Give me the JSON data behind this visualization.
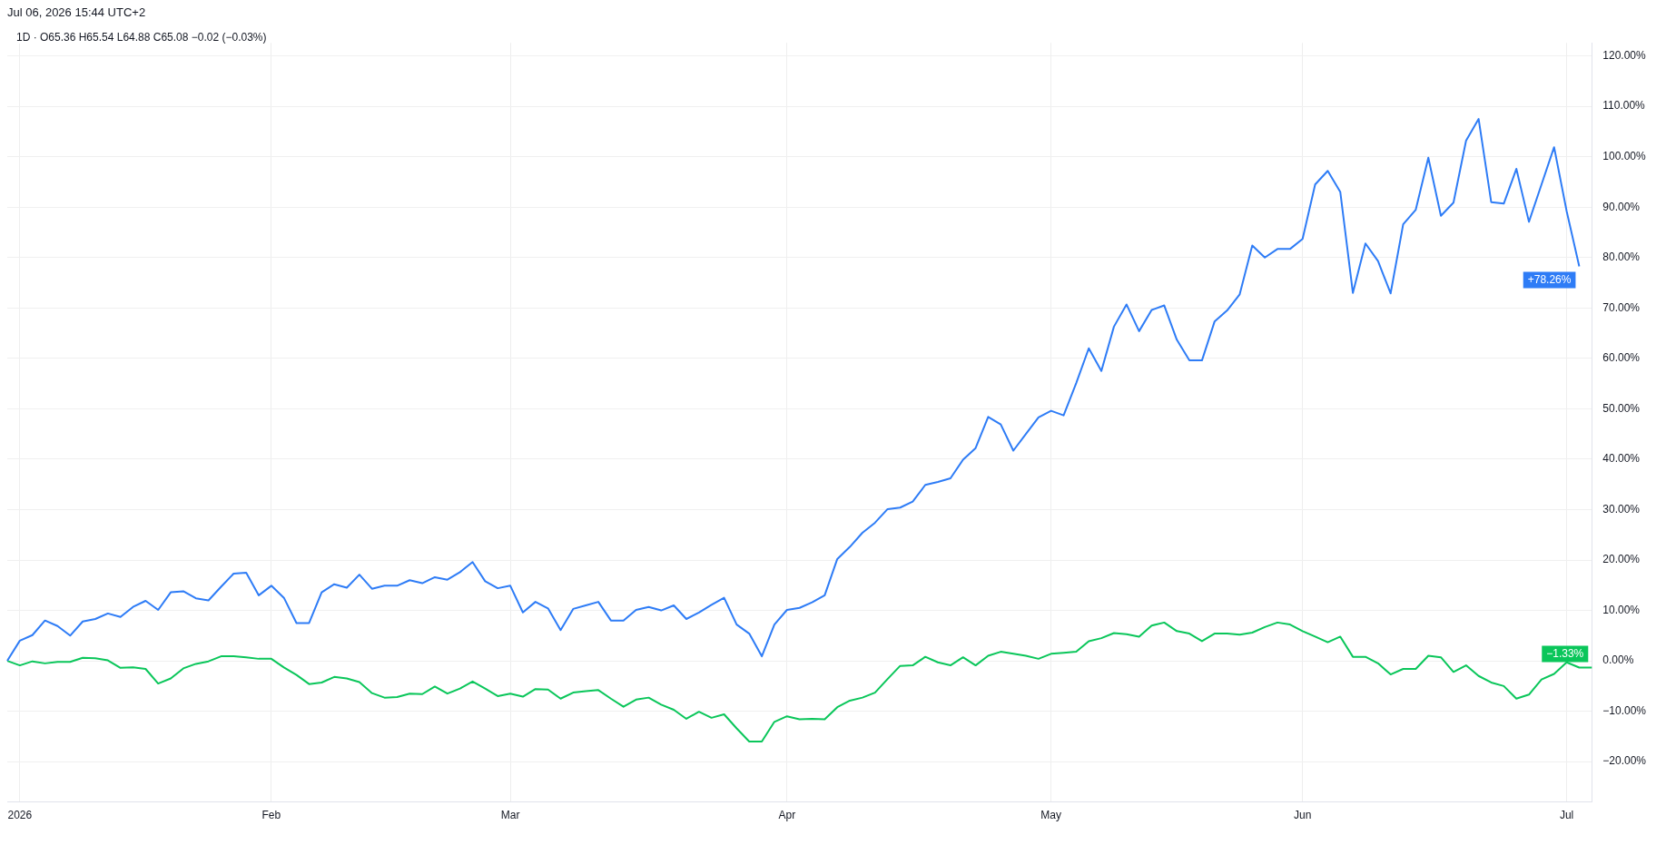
{
  "chart_data": {
    "type": "line",
    "title": "1D · O65.36 H65.54 L64.88 C65.08 −0.02 (−0.03%)",
    "annotations": [
      "Jul 06, 2026 15:44 UTC+2"
    ],
    "categories": [
      null,
      "2026",
      null,
      null,
      null,
      null,
      null,
      null,
      null,
      null,
      null,
      null,
      null,
      null,
      null,
      null,
      null,
      null,
      null,
      null,
      null,
      "Feb",
      null,
      null,
      null,
      null,
      null,
      null,
      null,
      null,
      null,
      null,
      null,
      null,
      null,
      null,
      null,
      null,
      null,
      null,
      "Mar",
      null,
      null,
      null,
      null,
      null,
      null,
      null,
      null,
      null,
      null,
      null,
      null,
      null,
      null,
      null,
      null,
      null,
      null,
      null,
      null,
      null,
      "Apr",
      null,
      null,
      null,
      null,
      null,
      null,
      null,
      null,
      null,
      null,
      null,
      null,
      null,
      null,
      null,
      null,
      null,
      null,
      null,
      null,
      "May",
      null,
      null,
      null,
      null,
      null,
      null,
      null,
      null,
      null,
      null,
      null,
      null,
      null,
      null,
      null,
      null,
      null,
      null,
      null,
      "Jun",
      null,
      null,
      null,
      null,
      null,
      null,
      null,
      null,
      null,
      null,
      null,
      null,
      null,
      null,
      null,
      null,
      null,
      null,
      null,
      null,
      "Jul",
      null,
      null
    ],
    "series": [
      {
        "color": "#2e7cf6",
        "values": [
          0,
          4.0,
          5.1,
          8.0,
          6.9,
          5.0,
          7.8,
          8.3,
          9.4,
          8.7,
          10.7,
          11.9,
          10.1,
          13.6,
          13.8,
          12.4,
          12.0,
          14.7,
          17.3,
          17.5,
          13.0,
          14.9,
          12.5,
          7.5,
          7.5,
          13.6,
          15.2,
          14.5,
          17.1,
          14.3,
          14.9,
          14.9,
          16.0,
          15.4,
          16.6,
          16.1,
          17.6,
          19.6,
          15.8,
          14.4,
          14.9,
          9.6,
          11.7,
          10.4,
          6.1,
          10.3,
          11.0,
          11.7,
          8.0,
          8.0,
          10.1,
          10.7,
          10.0,
          11.0,
          8.3,
          9.6,
          11.1,
          12.5,
          7.2,
          5.4,
          0.9,
          7.2,
          10.1,
          10.5,
          11.6,
          13.0,
          20.2,
          22.6,
          25.4,
          27.4,
          30.1,
          30.4,
          31.6,
          34.9,
          35.5,
          36.2,
          39.9,
          42.2,
          48.4,
          46.9,
          41.7,
          45.0,
          48.3,
          49.6,
          48.7,
          55.1,
          62.0,
          57.5,
          66.3,
          70.7,
          65.4,
          69.6,
          70.5,
          63.7,
          59.6,
          59.6,
          67.3,
          69.5,
          72.7,
          82.4,
          80.0,
          81.7,
          81.7,
          83.7,
          94.5,
          97.2,
          93.0,
          73.0,
          82.8,
          79.3,
          72.9,
          86.6,
          89.5,
          99.8,
          88.3,
          90.9,
          103.2,
          107.5,
          91.0,
          90.7,
          97.6,
          87.1,
          94.5,
          101.9,
          89.2,
          78.26,
          null
        ],
        "value_labels": [
          null,
          null,
          null,
          null,
          null,
          null,
          null,
          null,
          null,
          null,
          null,
          null,
          null,
          null,
          null,
          null,
          null,
          null,
          null,
          null,
          null,
          null,
          null,
          null,
          null,
          null,
          null,
          null,
          null,
          null,
          null,
          null,
          null,
          null,
          null,
          null,
          null,
          null,
          null,
          null,
          null,
          null,
          null,
          null,
          null,
          null,
          null,
          null,
          null,
          null,
          null,
          null,
          null,
          null,
          null,
          null,
          null,
          null,
          null,
          null,
          null,
          null,
          null,
          null,
          null,
          null,
          null,
          null,
          null,
          null,
          null,
          null,
          null,
          null,
          null,
          null,
          null,
          null,
          null,
          null,
          null,
          null,
          null,
          null,
          null,
          null,
          null,
          null,
          null,
          null,
          null,
          null,
          null,
          null,
          null,
          null,
          null,
          null,
          null,
          null,
          null,
          null,
          null,
          null,
          null,
          null,
          null,
          null,
          null,
          null,
          null,
          null,
          null,
          null,
          null,
          null,
          null,
          null,
          null,
          null,
          null,
          null,
          null,
          null,
          null,
          "+78.26%",
          null
        ]
      },
      {
        "color": "#0ac65a",
        "values": [
          0,
          -0.9,
          -0.1,
          -0.5,
          -0.2,
          -0.2,
          0.6,
          0.5,
          0.1,
          -1.4,
          -1.3,
          -1.6,
          -4.5,
          -3.5,
          -1.5,
          -0.6,
          -0.1,
          0.9,
          0.9,
          0.7,
          0.4,
          0.4,
          -1.3,
          -2.8,
          -4.6,
          -4.3,
          -3.2,
          -3.5,
          -4.2,
          -6.4,
          -7.3,
          -7.2,
          -6.5,
          -6.6,
          -5.1,
          -6.5,
          -5.5,
          -4.1,
          -5.5,
          -7.0,
          -6.5,
          -7.1,
          -5.6,
          -5.7,
          -7.5,
          -6.3,
          -6.0,
          -5.8,
          -7.5,
          -9.1,
          -7.7,
          -7.3,
          -8.7,
          -9.7,
          -11.5,
          -10.1,
          -11.3,
          -10.6,
          -13.4,
          -16.0,
          -16.0,
          -12.1,
          -11.0,
          -11.6,
          -11.5,
          -11.6,
          -9.2,
          -7.9,
          -7.3,
          -6.3,
          -3.6,
          -1.0,
          -0.9,
          0.8,
          -0.3,
          -0.9,
          0.7,
          -0.9,
          1.0,
          1.8,
          1.4,
          1.0,
          0.4,
          1.4,
          1.6,
          1.8,
          3.9,
          4.5,
          5.5,
          5.3,
          4.8,
          7.0,
          7.6,
          5.9,
          5.4,
          3.9,
          5.4,
          5.4,
          5.2,
          5.6,
          6.7,
          7.6,
          7.2,
          5.9,
          4.8,
          3.7,
          4.8,
          0.8,
          0.8,
          -0.5,
          -2.7,
          -1.6,
          -1.6,
          1.0,
          0.7,
          -2.2,
          -0.9,
          -3.0,
          -4.3,
          -5.0,
          -7.5,
          -6.7,
          -3.7,
          -2.6,
          -0.3,
          -1.33,
          -1.33
        ],
        "value_labels": [
          null,
          null,
          null,
          null,
          null,
          null,
          null,
          null,
          null,
          null,
          null,
          null,
          null,
          null,
          null,
          null,
          null,
          null,
          null,
          null,
          null,
          null,
          null,
          null,
          null,
          null,
          null,
          null,
          null,
          null,
          null,
          null,
          null,
          null,
          null,
          null,
          null,
          null,
          null,
          null,
          null,
          null,
          null,
          null,
          null,
          null,
          null,
          null,
          null,
          null,
          null,
          null,
          null,
          null,
          null,
          null,
          null,
          null,
          null,
          null,
          null,
          null,
          null,
          null,
          null,
          null,
          null,
          null,
          null,
          null,
          null,
          null,
          null,
          null,
          null,
          null,
          null,
          null,
          null,
          null,
          null,
          null,
          null,
          null,
          null,
          null,
          null,
          null,
          null,
          null,
          null,
          null,
          null,
          null,
          null,
          null,
          null,
          null,
          null,
          null,
          null,
          null,
          null,
          null,
          null,
          null,
          null,
          null,
          null,
          null,
          null,
          null,
          null,
          null,
          null,
          null,
          null,
          null,
          null,
          null,
          null,
          null,
          null,
          null,
          null,
          null,
          "−1.33%"
        ]
      }
    ],
    "ylim": [
      -28,
      122.6
    ],
    "yticks": [
      {
        "value": -20,
        "label": "−20.00%"
      },
      {
        "value": -10,
        "label": "−10.00%"
      },
      {
        "value": 0,
        "label": "0.00%"
      },
      {
        "value": 10,
        "label": "10.00%"
      },
      {
        "value": 20,
        "label": "20.00%"
      },
      {
        "value": 30,
        "label": "30.00%"
      },
      {
        "value": 40,
        "label": "40.00%"
      },
      {
        "value": 50,
        "label": "50.00%"
      },
      {
        "value": 60,
        "label": "60.00%"
      },
      {
        "value": 70,
        "label": "70.00%"
      },
      {
        "value": 80,
        "label": "80.00%"
      },
      {
        "value": 90,
        "label": "90.00%"
      },
      {
        "value": 100,
        "label": "100.00%"
      },
      {
        "value": 110,
        "label": "110.00%"
      },
      {
        "value": 120,
        "label": "120.00%"
      }
    ],
    "grid": true,
    "legend": false,
    "marker": "none",
    "line_style": "solid"
  }
}
